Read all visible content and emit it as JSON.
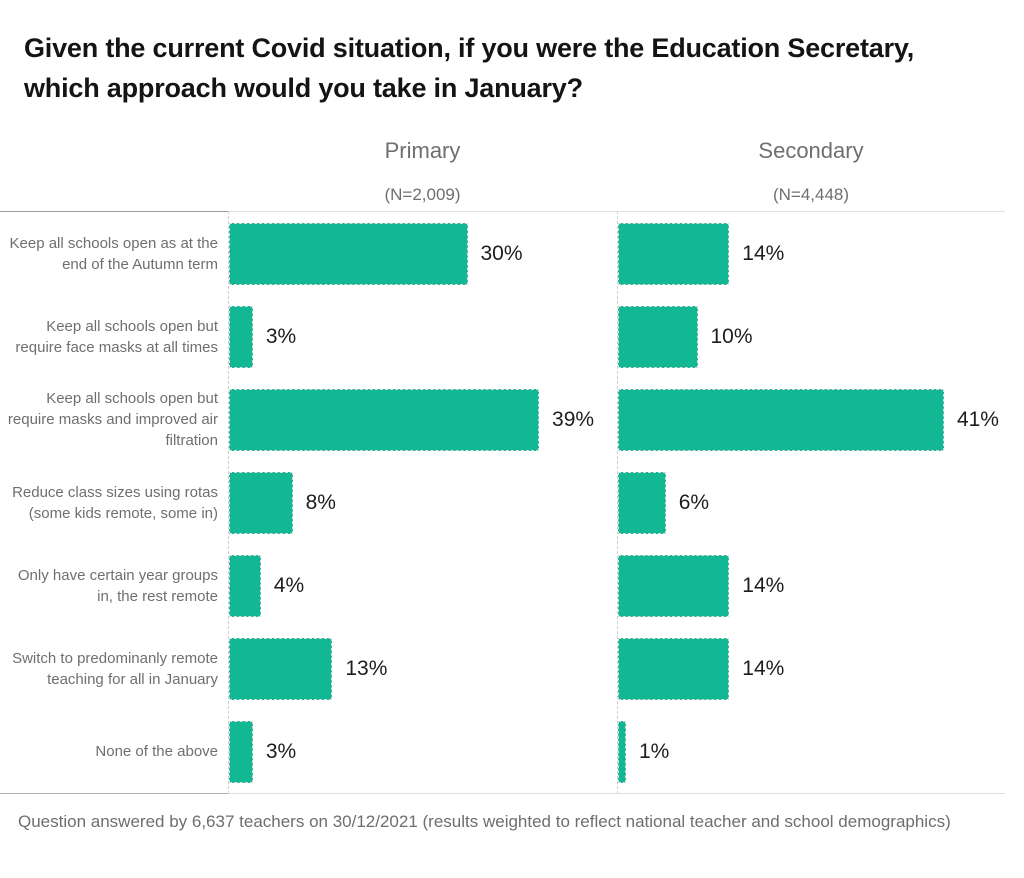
{
  "title": {
    "line1": "Given the current Covid situation, if you were the Education Secretary,",
    "line2": "which approach would you take in January?"
  },
  "footnote": "Question answered by 6,637 teachers on 30/12/2021 (results weighted to reflect national teacher and school demographics)",
  "chart_data": {
    "type": "bar",
    "orientation": "horizontal",
    "title": "Given the current Covid situation, if you were the Education Secretary, which approach would you take in January?",
    "categories": [
      "Keep all schools open as at the end of the Autumn term",
      "Keep all schools open but require face masks at all times",
      "Keep all schools open but require masks and improved air filtration",
      "Reduce class sizes using rotas (some kids remote, some in)",
      "Only have certain year groups in, the rest remote",
      "Switch to predominanly remote teaching for all in January",
      "None of the above"
    ],
    "series": [
      {
        "name": "Primary",
        "n_label": "(N=2,009)",
        "values": [
          30,
          3,
          39,
          8,
          4,
          13,
          3
        ]
      },
      {
        "name": "Secondary",
        "n_label": "(N=4,448)",
        "values": [
          14,
          10,
          41,
          6,
          14,
          14,
          1
        ]
      }
    ],
    "value_suffix": "%",
    "xlim": [
      0,
      48
    ],
    "grid": "off",
    "legend": "none",
    "bar_color": "#12b893",
    "label_color": "#6f6f6f",
    "value_label_color": "#1d1d1d",
    "footnote": "Question answered by 6,637 teachers on 30/12/2021 (results weighted to reflect national teacher and school demographics)"
  }
}
